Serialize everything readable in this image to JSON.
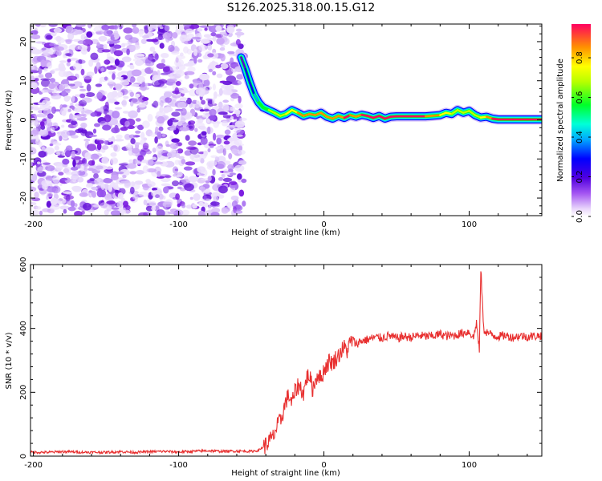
{
  "title": "S126.2025.318.00.15.G12",
  "colors": {
    "snr_line": "#e83030",
    "speckle_dark": "#7a1be0",
    "speckle_light": "#caa4f7",
    "axis": "#000000"
  },
  "chart_data": [
    {
      "type": "heatmap",
      "title": "S126.2025.318.00.15.G12",
      "xlabel": "Height of straight line (km)",
      "ylabel": "Frequency (Hz)",
      "xlim": [
        -202,
        150
      ],
      "ylim": [
        -24.5,
        24.5
      ],
      "xticks": [
        -200,
        -100,
        0,
        100
      ],
      "xtick_labels": [
        "-200",
        "-100",
        "0",
        "100"
      ],
      "yticks": [
        20,
        10,
        0,
        -10,
        -20
      ],
      "ytick_labels": [
        "20",
        "10",
        "0",
        "-10",
        "-20"
      ],
      "noise_region": {
        "x_from": -202,
        "x_to": -55,
        "description_free": true
      },
      "ridge": {
        "x": [
          -57,
          -54,
          -51,
          -48,
          -45,
          -42,
          -38,
          -34,
          -30,
          -26,
          -22,
          -18,
          -14,
          -10,
          -6,
          -2,
          2,
          6,
          10,
          14,
          18,
          22,
          26,
          30,
          34,
          38,
          42,
          46,
          50,
          60,
          70,
          80,
          84,
          88,
          92,
          96,
          100,
          104,
          108,
          112,
          116,
          120,
          130,
          140,
          150
        ],
        "freq": [
          16,
          13,
          9.5,
          6.5,
          4.5,
          3.2,
          2.5,
          1.8,
          1.0,
          1.5,
          2.5,
          1.8,
          1.0,
          1.5,
          1.2,
          1.8,
          0.8,
          0.3,
          1.0,
          0.5,
          1.2,
          0.8,
          1.3,
          1.0,
          0.5,
          1.0,
          0.3,
          0.8,
          0.9,
          0.9,
          0.9,
          1.2,
          1.8,
          1.5,
          2.5,
          1.8,
          2.3,
          1.2,
          0.6,
          0.8,
          0.3,
          0.1,
          0.1,
          0.1,
          0.1
        ],
        "amp": [
          0.15,
          0.2,
          0.25,
          0.35,
          0.45,
          0.6,
          0.5,
          0.7,
          0.65,
          0.7,
          0.75,
          0.8,
          0.8,
          0.85,
          0.8,
          0.85,
          0.85,
          0.9,
          0.85,
          0.9,
          0.9,
          0.85,
          0.9,
          0.9,
          0.95,
          0.9,
          0.95,
          0.9,
          0.95,
          0.95,
          0.95,
          0.7,
          0.75,
          0.7,
          0.65,
          0.6,
          0.7,
          0.65,
          0.7,
          0.75,
          0.9,
          0.95,
          0.95,
          0.95,
          0.95
        ]
      },
      "colorbar": {
        "label": "Normalized spectral amplitude",
        "range": [
          0,
          0.97
        ],
        "ticks": [
          0.0,
          0.2,
          0.4,
          0.6,
          0.8
        ],
        "tick_labels": [
          "0.0",
          "0.2",
          "0.4",
          "0.6",
          "0.8"
        ]
      }
    },
    {
      "type": "line",
      "xlabel": "Height of straight line (km)",
      "ylabel": "SNR (10 * v/v)",
      "xlim": [
        -202,
        150
      ],
      "ylim": [
        0,
        600
      ],
      "xticks": [
        -200,
        -100,
        0,
        100
      ],
      "xtick_labels": [
        "-200",
        "-100",
        "0",
        "100"
      ],
      "yticks": [
        0,
        200,
        400,
        600
      ],
      "ytick_labels": [
        "0",
        "200",
        "400",
        "600"
      ],
      "series": [
        {
          "name": "SNR",
          "x": [
            -202,
            -190,
            -180,
            -170,
            -160,
            -150,
            -140,
            -130,
            -120,
            -110,
            -100,
            -90,
            -80,
            -70,
            -60,
            -50,
            -45,
            -40,
            -38,
            -35,
            -32,
            -30,
            -28,
            -26,
            -24,
            -22,
            -20,
            -18,
            -16,
            -14,
            -12,
            -10,
            -8,
            -6,
            -4,
            -2,
            0,
            2,
            4,
            6,
            8,
            10,
            12,
            14,
            16,
            18,
            20,
            22,
            25,
            30,
            35,
            40,
            45,
            50,
            55,
            60,
            65,
            70,
            75,
            80,
            85,
            90,
            95,
            100,
            103,
            105,
            107,
            108,
            110,
            115,
            120,
            125,
            130,
            135,
            140,
            145,
            150
          ],
          "y": [
            12,
            12,
            14,
            13,
            12,
            12,
            14,
            12,
            14,
            15,
            13,
            15,
            17,
            15,
            16,
            15,
            18,
            35,
            45,
            60,
            95,
            110,
            140,
            175,
            190,
            165,
            200,
            220,
            215,
            195,
            245,
            255,
            210,
            235,
            260,
            240,
            270,
            285,
            300,
            290,
            305,
            315,
            330,
            340,
            330,
            355,
            365,
            350,
            360,
            365,
            372,
            370,
            378,
            368,
            375,
            372,
            378,
            375,
            376,
            382,
            376,
            378,
            385,
            390,
            370,
            420,
            330,
            590,
            395,
            380,
            375,
            378,
            372,
            377,
            374,
            376,
            378
          ]
        }
      ]
    }
  ]
}
